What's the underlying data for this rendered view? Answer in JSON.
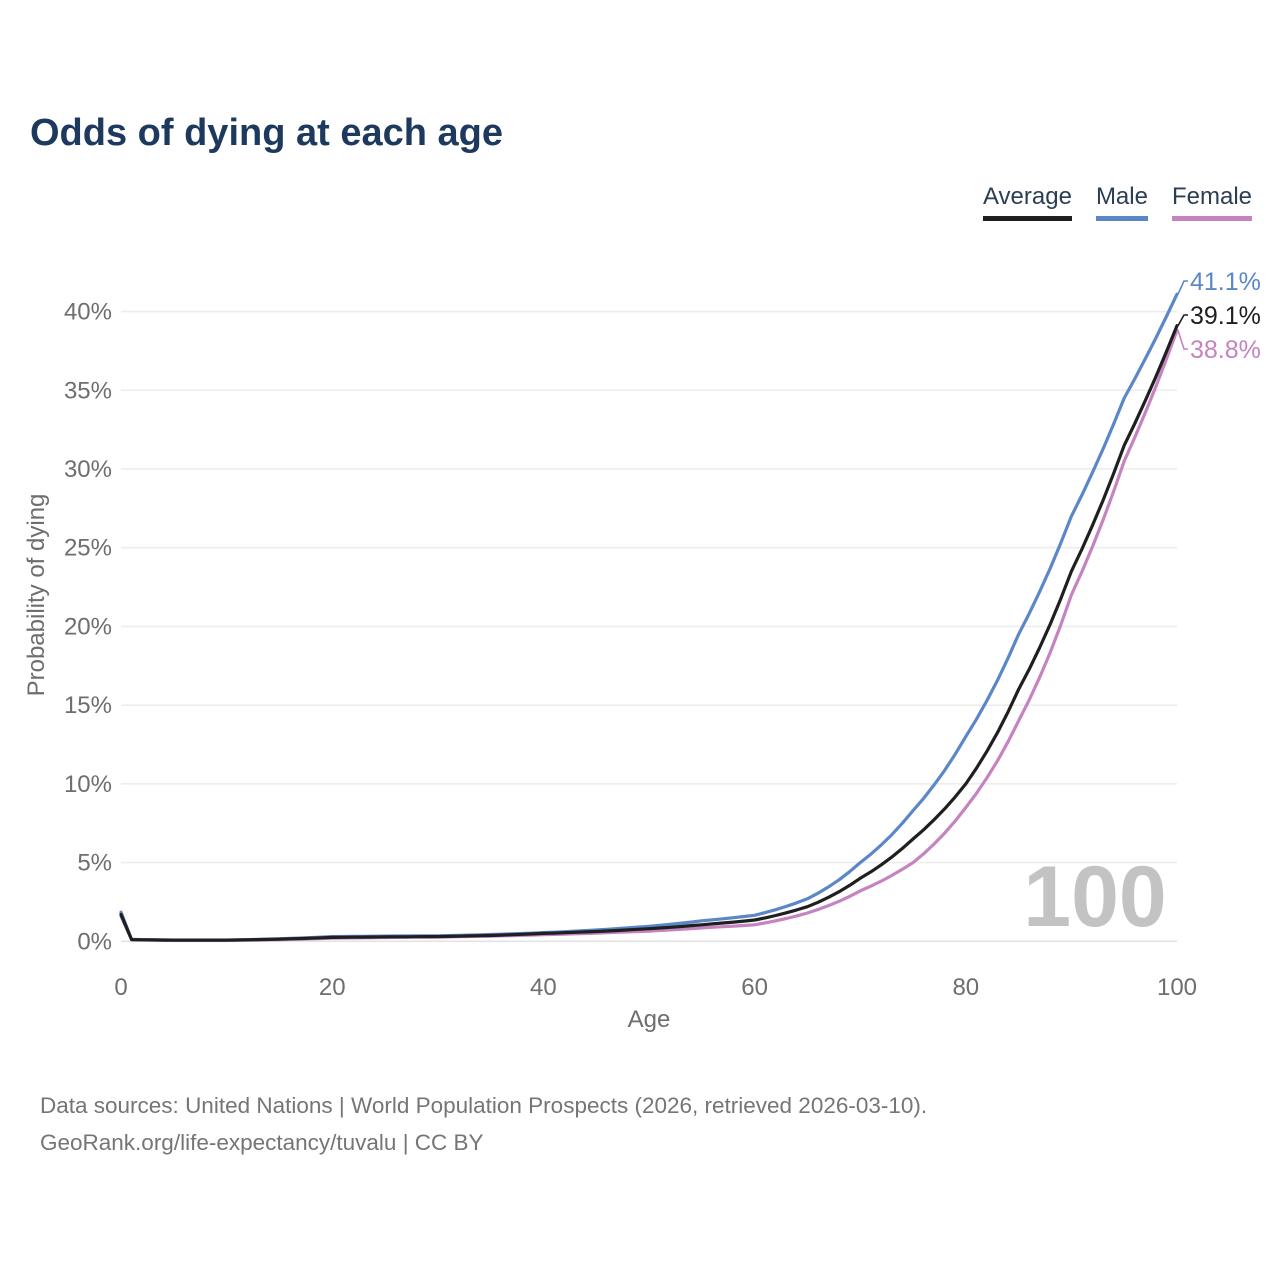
{
  "title": "Odds of dying at each age",
  "legend": {
    "items": [
      {
        "label": "Average",
        "color": "#1f1f1f"
      },
      {
        "label": "Male",
        "color": "#5b87c9"
      },
      {
        "label": "Female",
        "color": "#c583c0"
      }
    ]
  },
  "watermark": "100",
  "footer": {
    "line1": "Data sources: United Nations | World Population Prospects (2026, retrieved 2026-03-10).",
    "line2": "GeoRank.org/life-expectancy/tuvalu | CC BY"
  },
  "chart_data": {
    "type": "line",
    "title": "Odds of dying at each age",
    "xlabel": "Age",
    "ylabel": "Probability of dying",
    "x_ticks": [
      0,
      20,
      40,
      60,
      80,
      100
    ],
    "y_ticks": [
      "0%",
      "5%",
      "10%",
      "15%",
      "20%",
      "25%",
      "30%",
      "35%",
      "40%"
    ],
    "y_tick_values": [
      0,
      5,
      10,
      15,
      20,
      25,
      30,
      35,
      40
    ],
    "xlim": [
      0,
      100
    ],
    "ylim": [
      0,
      42
    ],
    "grid": "horizontal",
    "legend_position": "top-right",
    "ages": [
      0,
      1,
      5,
      10,
      15,
      20,
      25,
      30,
      35,
      40,
      45,
      50,
      55,
      60,
      65,
      70,
      75,
      80,
      85,
      90,
      95,
      100
    ],
    "series": [
      {
        "name": "Male",
        "color": "#5b87c9",
        "end_label": "41.1%",
        "end_value": 41.1,
        "values": [
          1.85,
          0.12,
          0.08,
          0.08,
          0.16,
          0.3,
          0.33,
          0.35,
          0.43,
          0.55,
          0.72,
          0.95,
          1.3,
          1.65,
          2.7,
          5.0,
          8.3,
          13.0,
          19.5,
          27.0,
          34.5,
          41.1
        ]
      },
      {
        "name": "Female",
        "color": "#c583c0",
        "end_label": "38.8%",
        "end_value": 38.8,
        "values": [
          1.6,
          0.1,
          0.06,
          0.06,
          0.11,
          0.2,
          0.24,
          0.27,
          0.33,
          0.42,
          0.52,
          0.65,
          0.85,
          1.05,
          1.8,
          3.2,
          5.0,
          8.5,
          14.0,
          22.0,
          30.5,
          38.8
        ]
      },
      {
        "name": "Average",
        "color": "#1f1f1f",
        "end_label": "39.1%",
        "end_value": 39.1,
        "values": [
          1.7,
          0.11,
          0.07,
          0.07,
          0.14,
          0.25,
          0.28,
          0.3,
          0.37,
          0.5,
          0.62,
          0.8,
          1.05,
          1.35,
          2.2,
          4.0,
          6.5,
          10.0,
          16.0,
          23.5,
          31.5,
          39.1
        ]
      }
    ]
  }
}
